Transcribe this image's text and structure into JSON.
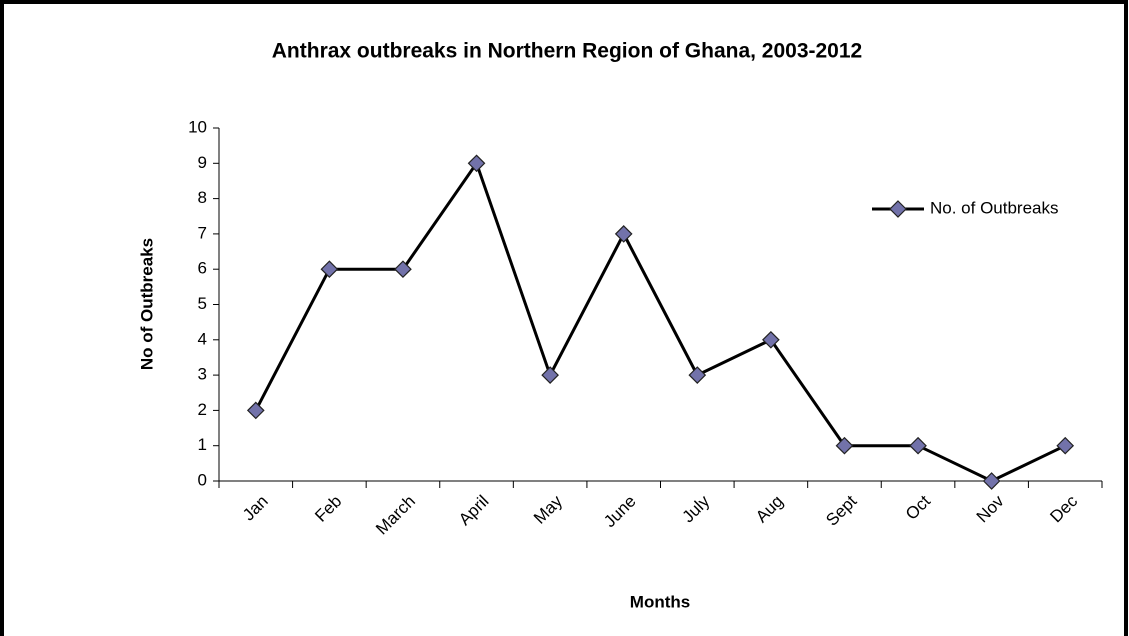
{
  "chart_data": {
    "type": "line",
    "title": "Anthrax outbreaks in Northern Region of Ghana, 2003-2012",
    "x_label": "Months",
    "y_label": "No of Outbreaks",
    "categories": [
      "Jan",
      "Feb",
      "March",
      "April",
      "May",
      "June",
      "July",
      "Aug",
      "Sept",
      "Oct",
      "Nov",
      "Dec"
    ],
    "series": [
      {
        "name": "No. of Outbreaks",
        "color": "#000000",
        "marker_color": "#7272aa",
        "values": [
          2,
          6,
          6,
          9,
          3,
          7,
          3,
          4,
          1,
          1,
          0,
          1
        ]
      }
    ],
    "ylim": [
      0,
      10
    ],
    "yticks": [
      0,
      1,
      2,
      3,
      4,
      5,
      6,
      7,
      8,
      9,
      10
    ],
    "grid": false,
    "legend": "right"
  }
}
